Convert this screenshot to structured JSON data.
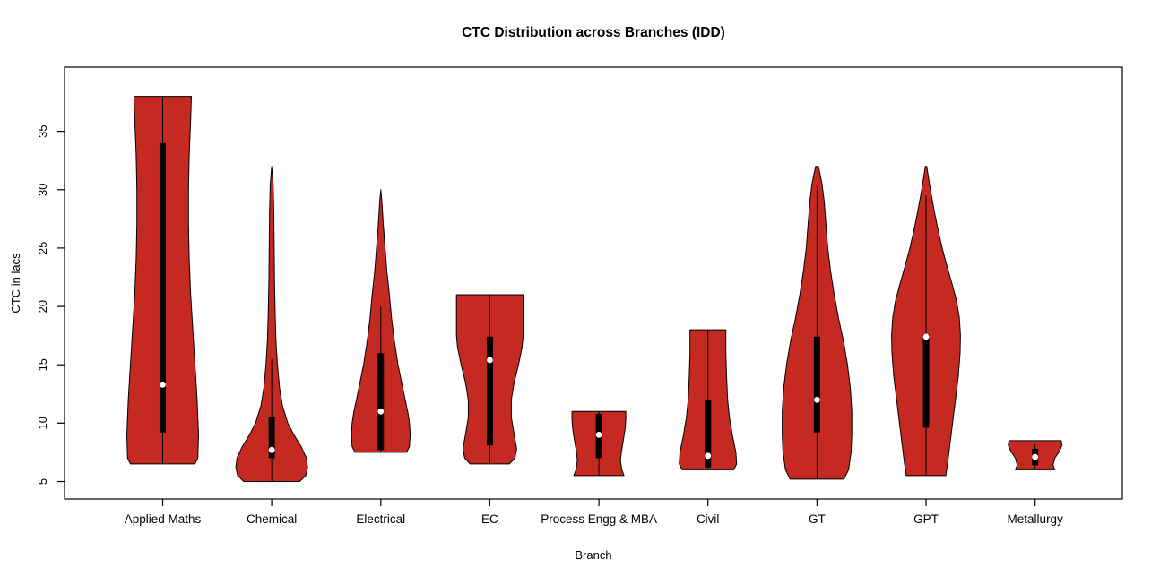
{
  "title": "CTC Distribution across Branches (IDD)",
  "chart_data": {
    "type": "violin",
    "title": "CTC Distribution across Branches (IDD)",
    "xlabel": "Branch",
    "ylabel": "CTC in lacs",
    "yticks": [
      5,
      10,
      15,
      20,
      25,
      30,
      35
    ],
    "ylim": [
      3.5,
      40.5
    ],
    "fill_color": "#C42A21",
    "outline_color": "#000000",
    "median_dot_color": "#ffffff",
    "categories": [
      "Applied Maths",
      "Chemical",
      "Electrical",
      "EC",
      "Process Engg & MBA",
      "Civil",
      "GT",
      "GPT",
      "Metallurgy"
    ],
    "violins": [
      {
        "name": "Applied Maths",
        "min": 6.5,
        "max": 38,
        "median": 13.3,
        "q1": 9.2,
        "q3": 34,
        "whisker_low": 6.5,
        "whisker_high": 38,
        "profile": [
          [
            6.5,
            0.9
          ],
          [
            7,
            0.98
          ],
          [
            9,
            1.0
          ],
          [
            12,
            0.96
          ],
          [
            15,
            0.9
          ],
          [
            18,
            0.84
          ],
          [
            21,
            0.78
          ],
          [
            24,
            0.74
          ],
          [
            27,
            0.72
          ],
          [
            30,
            0.72
          ],
          [
            33,
            0.74
          ],
          [
            36,
            0.78
          ],
          [
            38,
            0.8
          ]
        ]
      },
      {
        "name": "Chemical",
        "min": 5,
        "max": 32,
        "median": 7.7,
        "q1": 7,
        "q3": 10.5,
        "whisker_low": 5,
        "whisker_high": 15.5,
        "profile": [
          [
            5,
            0.78
          ],
          [
            5.5,
            0.95
          ],
          [
            6.2,
            1.0
          ],
          [
            7,
            0.97
          ],
          [
            8,
            0.82
          ],
          [
            9,
            0.62
          ],
          [
            10,
            0.45
          ],
          [
            11.5,
            0.3
          ],
          [
            13,
            0.22
          ],
          [
            15,
            0.16
          ],
          [
            17,
            0.12
          ],
          [
            19,
            0.1
          ],
          [
            22,
            0.08
          ],
          [
            25,
            0.07
          ],
          [
            28,
            0.06
          ],
          [
            30.5,
            0.04
          ],
          [
            32,
            0.0
          ]
        ]
      },
      {
        "name": "Electrical",
        "min": 7.5,
        "max": 30,
        "median": 11,
        "q1": 7.7,
        "q3": 16,
        "whisker_low": 7.5,
        "whisker_high": 20,
        "profile": [
          [
            7.5,
            0.72
          ],
          [
            8,
            0.8
          ],
          [
            9,
            0.82
          ],
          [
            10,
            0.8
          ],
          [
            11,
            0.75
          ],
          [
            12,
            0.68
          ],
          [
            13.5,
            0.58
          ],
          [
            15,
            0.48
          ],
          [
            17,
            0.38
          ],
          [
            19,
            0.3
          ],
          [
            21,
            0.24
          ],
          [
            23,
            0.17
          ],
          [
            25,
            0.12
          ],
          [
            27,
            0.07
          ],
          [
            29,
            0.03
          ],
          [
            30,
            0.0
          ]
        ]
      },
      {
        "name": "EC",
        "min": 6.5,
        "max": 21,
        "median": 15.4,
        "q1": 8.1,
        "q3": 17.4,
        "whisker_low": 6.5,
        "whisker_high": 21,
        "profile": [
          [
            6.5,
            0.55
          ],
          [
            7,
            0.7
          ],
          [
            7.8,
            0.75
          ],
          [
            9,
            0.68
          ],
          [
            10.5,
            0.6
          ],
          [
            12,
            0.6
          ],
          [
            13.5,
            0.68
          ],
          [
            15,
            0.8
          ],
          [
            16.5,
            0.9
          ],
          [
            17.5,
            0.93
          ],
          [
            19,
            0.93
          ],
          [
            21,
            0.93
          ]
        ]
      },
      {
        "name": "Process Engg & MBA",
        "min": 5.5,
        "max": 11,
        "median": 9,
        "q1": 7,
        "q3": 10.8,
        "whisker_low": 5.5,
        "whisker_high": 11,
        "profile": [
          [
            5.5,
            0.7
          ],
          [
            6,
            0.64
          ],
          [
            6.8,
            0.6
          ],
          [
            7.6,
            0.63
          ],
          [
            8.5,
            0.68
          ],
          [
            9.5,
            0.73
          ],
          [
            10.3,
            0.75
          ],
          [
            11,
            0.75
          ]
        ]
      },
      {
        "name": "Civil",
        "min": 6,
        "max": 18,
        "median": 7.2,
        "q1": 6.2,
        "q3": 12,
        "whisker_low": 6,
        "whisker_high": 18,
        "profile": [
          [
            6,
            0.72
          ],
          [
            6.5,
            0.8
          ],
          [
            7.5,
            0.78
          ],
          [
            9,
            0.68
          ],
          [
            10.5,
            0.6
          ],
          [
            12,
            0.55
          ],
          [
            14,
            0.52
          ],
          [
            16,
            0.5
          ],
          [
            18,
            0.5
          ]
        ]
      },
      {
        "name": "GT",
        "min": 5.2,
        "max": 32,
        "median": 12,
        "q1": 9.2,
        "q3": 17.4,
        "whisker_low": 5.2,
        "whisker_high": 30.3,
        "profile": [
          [
            5.2,
            0.75
          ],
          [
            6,
            0.88
          ],
          [
            7.5,
            0.95
          ],
          [
            9,
            0.97
          ],
          [
            11,
            0.97
          ],
          [
            13,
            0.93
          ],
          [
            15,
            0.85
          ],
          [
            17,
            0.74
          ],
          [
            19,
            0.6
          ],
          [
            21,
            0.48
          ],
          [
            23,
            0.38
          ],
          [
            25,
            0.3
          ],
          [
            27,
            0.25
          ],
          [
            29,
            0.2
          ],
          [
            30.5,
            0.14
          ],
          [
            32,
            0.04
          ]
        ]
      },
      {
        "name": "GPT",
        "min": 5.5,
        "max": 32,
        "median": 17.4,
        "q1": 9.6,
        "q3": 17.6,
        "whisker_low": 5.5,
        "whisker_high": 29.5,
        "profile": [
          [
            5.5,
            0.55
          ],
          [
            6.5,
            0.6
          ],
          [
            8,
            0.66
          ],
          [
            10,
            0.74
          ],
          [
            12,
            0.82
          ],
          [
            14,
            0.9
          ],
          [
            16,
            0.95
          ],
          [
            17.5,
            0.96
          ],
          [
            19,
            0.93
          ],
          [
            20.5,
            0.85
          ],
          [
            22,
            0.72
          ],
          [
            23.5,
            0.58
          ],
          [
            25,
            0.45
          ],
          [
            26.5,
            0.34
          ],
          [
            28,
            0.24
          ],
          [
            29.5,
            0.15
          ],
          [
            31,
            0.07
          ],
          [
            32,
            0.02
          ]
        ]
      },
      {
        "name": "Metallurgy",
        "min": 6,
        "max": 8.5,
        "median": 7.1,
        "q1": 6.4,
        "q3": 7.8,
        "whisker_low": 6,
        "whisker_high": 8.2,
        "profile": [
          [
            6,
            0.55
          ],
          [
            6.4,
            0.5
          ],
          [
            7,
            0.55
          ],
          [
            7.6,
            0.68
          ],
          [
            8.1,
            0.75
          ],
          [
            8.5,
            0.73
          ]
        ]
      }
    ]
  }
}
